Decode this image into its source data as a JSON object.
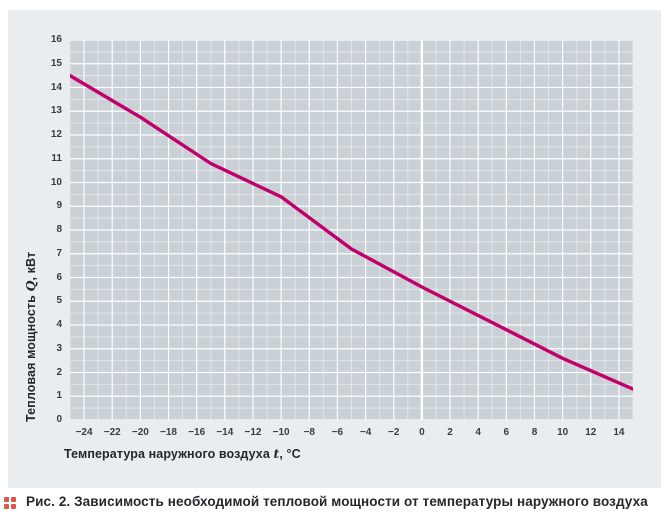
{
  "panel": {
    "background": "#e9edf0"
  },
  "caption": {
    "icon": "figure-marker-icon",
    "icon_color": "#dc574b",
    "text": "Рис. 2. Зависимость необходимой тепловой мощности от температуры наружного воздуха"
  },
  "chart_data": {
    "type": "line",
    "title": "",
    "x_axis": {
      "label_prefix": "Температура наружного воздуха ",
      "label_var": "t",
      "label_suffix": ", °C",
      "lim": [
        -25,
        15
      ],
      "ticks": [
        -24,
        -22,
        -20,
        -18,
        -16,
        -14,
        -12,
        -10,
        -8,
        -6,
        -4,
        -2,
        0,
        2,
        4,
        6,
        8,
        10,
        12,
        14
      ],
      "minor_step": 1,
      "major_step": 2,
      "zero_line_at": 0
    },
    "y_axis": {
      "label_prefix": "Тепловая мощность ",
      "label_var": "Q",
      "label_suffix": ", кВт",
      "lim": [
        0,
        16
      ],
      "ticks": [
        0,
        1,
        2,
        3,
        4,
        5,
        6,
        7,
        8,
        9,
        10,
        11,
        12,
        13,
        14,
        15,
        16
      ],
      "minor_step": 0.5,
      "major_step": 1
    },
    "grid": {
      "shown": true,
      "plot_bg": "#c9d0d6",
      "minor_color": "rgba(255,255,255,0.45)",
      "major_color": "rgba(255,255,255,0.9)",
      "zero_line_color": "#ffffff"
    },
    "legend": {
      "shown": false
    },
    "series": [
      {
        "name": "Тепловая мощность Q(t)",
        "color": "#c2006b",
        "width": 3.4,
        "x": [
          -25,
          -20,
          -15,
          -10,
          -5,
          0,
          5,
          10,
          15
        ],
        "y": [
          14.5,
          12.75,
          10.8,
          9.4,
          7.2,
          5.6,
          4.1,
          2.6,
          1.3
        ]
      }
    ]
  }
}
